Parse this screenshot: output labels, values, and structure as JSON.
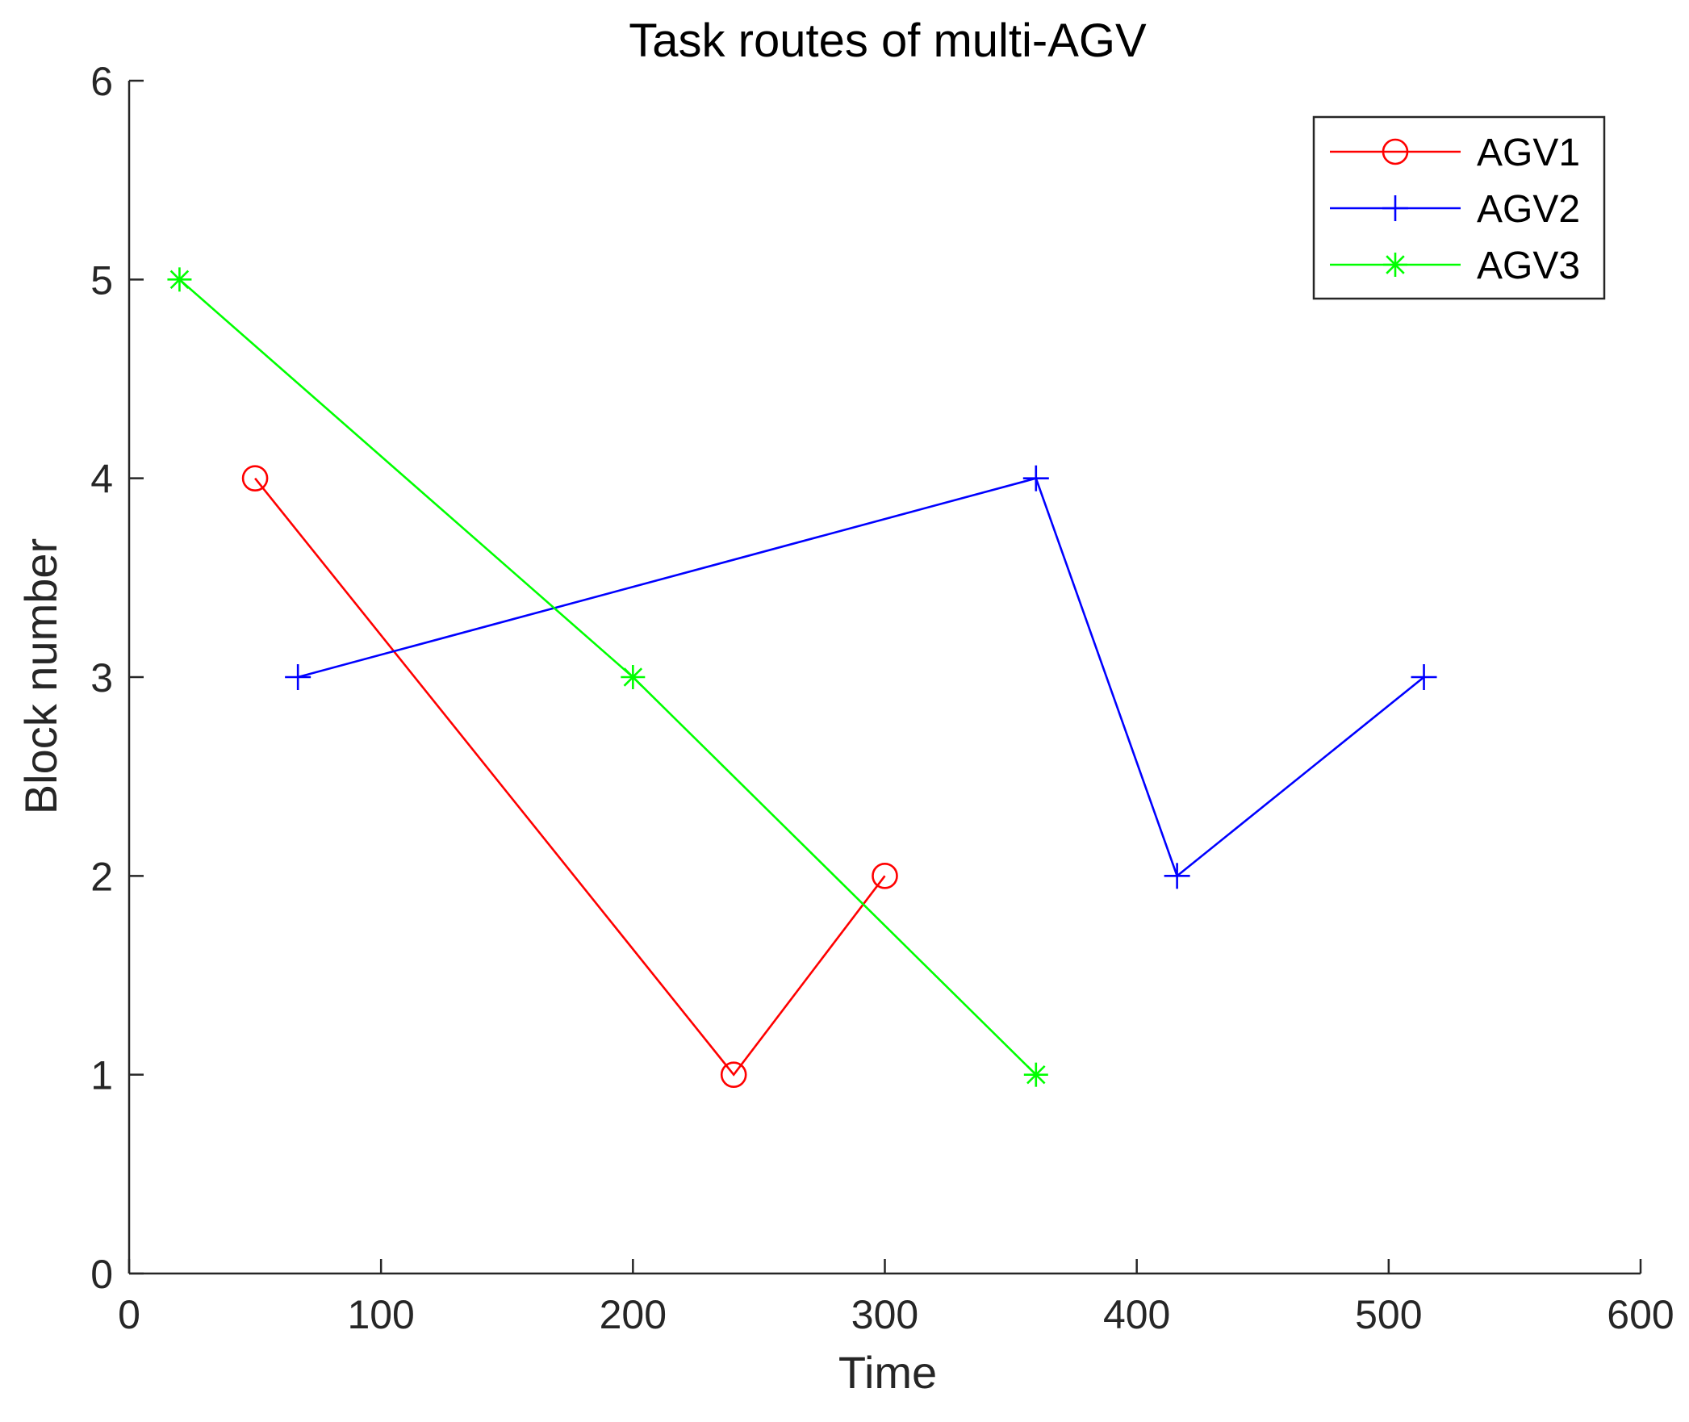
{
  "chart_data": {
    "type": "line",
    "title": "Task routes of multi-AGV",
    "xlabel": "Time",
    "ylabel": "Block number",
    "xlim": [
      0,
      600
    ],
    "ylim": [
      0,
      6
    ],
    "xticks": [
      0,
      100,
      200,
      300,
      400,
      500,
      600
    ],
    "yticks": [
      0,
      1,
      2,
      3,
      4,
      5,
      6
    ],
    "grid": false,
    "legend_position": "top-right",
    "series": [
      {
        "name": "AGV1",
        "color": "#ff0000",
        "marker": "circle",
        "points": [
          [
            50,
            4
          ],
          [
            240,
            1
          ],
          [
            300,
            2
          ]
        ]
      },
      {
        "name": "AGV2",
        "color": "#0000ff",
        "marker": "plus",
        "points": [
          [
            67,
            3
          ],
          [
            360,
            4
          ],
          [
            416,
            2
          ],
          [
            514,
            3
          ]
        ]
      },
      {
        "name": "AGV3",
        "color": "#00ff00",
        "marker": "asterisk",
        "points": [
          [
            20,
            5
          ],
          [
            200,
            3
          ],
          [
            360,
            1
          ]
        ]
      }
    ]
  }
}
